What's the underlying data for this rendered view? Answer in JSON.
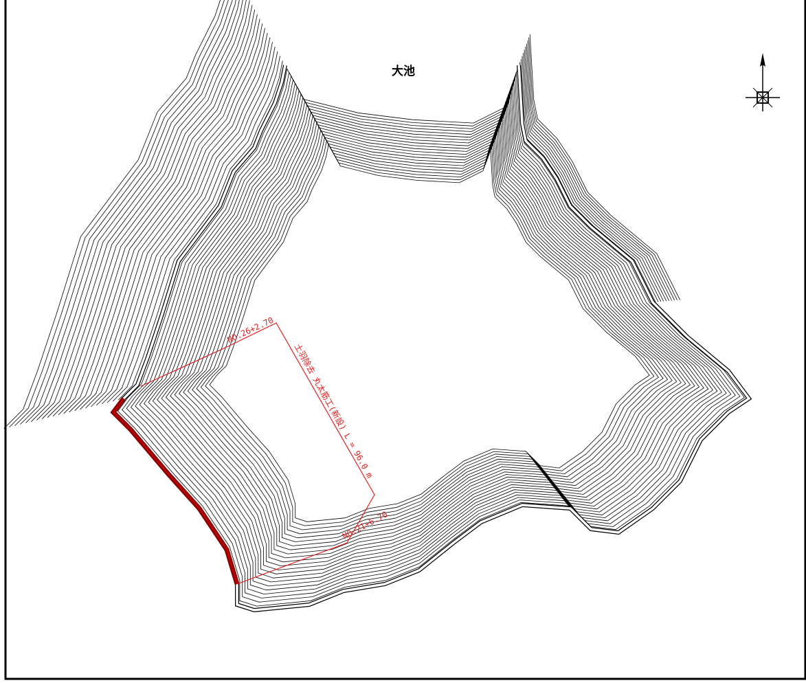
{
  "map": {
    "lake_label": "大池",
    "station_start": "NO.26+2.70",
    "station_end": "NO.21+6.70",
    "work_note": "土羽除去 丸太筋工(新設) L = 96.0 m"
  }
}
